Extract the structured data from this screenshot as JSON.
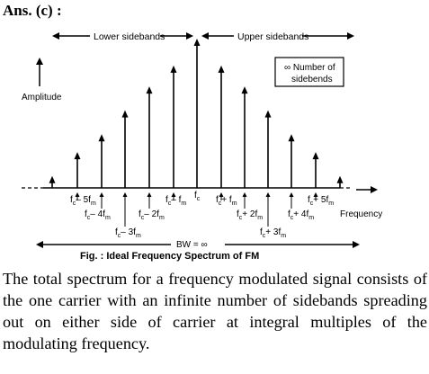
{
  "answer": "Ans. (c) :",
  "figure": {
    "lower_sidebands": "Lower sidebands",
    "upper_sidebands": "Upper sidebands",
    "legend_line1": "∞ Number of",
    "legend_line2": "sidebends",
    "y_axis": "Amplitude",
    "x_axis": "Frequency",
    "carrier_label": "f",
    "carrier_sub": "c",
    "bw_label": "BW = ∞",
    "caption": "Fig. : Ideal Frequency Spectrum of FM",
    "freq_labels": [
      {
        "main": "f",
        "sub1": "c",
        "rest": "– 5f",
        "sub2": "m"
      },
      {
        "main": "f",
        "sub1": "c",
        "rest": "– 4f",
        "sub2": "m"
      },
      {
        "main": "f",
        "sub1": "c",
        "rest": "– 3f",
        "sub2": "m"
      },
      {
        "main": "f",
        "sub1": "c",
        "rest": "– 2f",
        "sub2": "m"
      },
      {
        "main": "f",
        "sub1": "c",
        "rest": "– f",
        "sub2": "m"
      },
      {
        "main": "f",
        "sub1": "c",
        "rest": "+ f",
        "sub2": "m"
      },
      {
        "main": "f",
        "sub1": "c",
        "rest": "+ 2f",
        "sub2": "m"
      },
      {
        "main": "f",
        "sub1": "c",
        "rest": "+ 3f",
        "sub2": "m"
      },
      {
        "main": "f",
        "sub1": "c",
        "rest": "+ 4f",
        "sub2": "m"
      },
      {
        "main": "f",
        "sub1": "c",
        "rest": "+ 5f",
        "sub2": "m"
      }
    ],
    "line_heights": [
      0.08,
      0.24,
      0.36,
      0.52,
      0.68,
      0.82,
      1.0,
      0.82,
      0.68,
      0.52,
      0.36,
      0.24,
      0.08
    ]
  },
  "paragraph": "The total spectrum for a frequency modulated signal consists of the one carrier with an infinite number of sidebands spreading out on either side of carrier at integral multiples of the modulating frequency."
}
